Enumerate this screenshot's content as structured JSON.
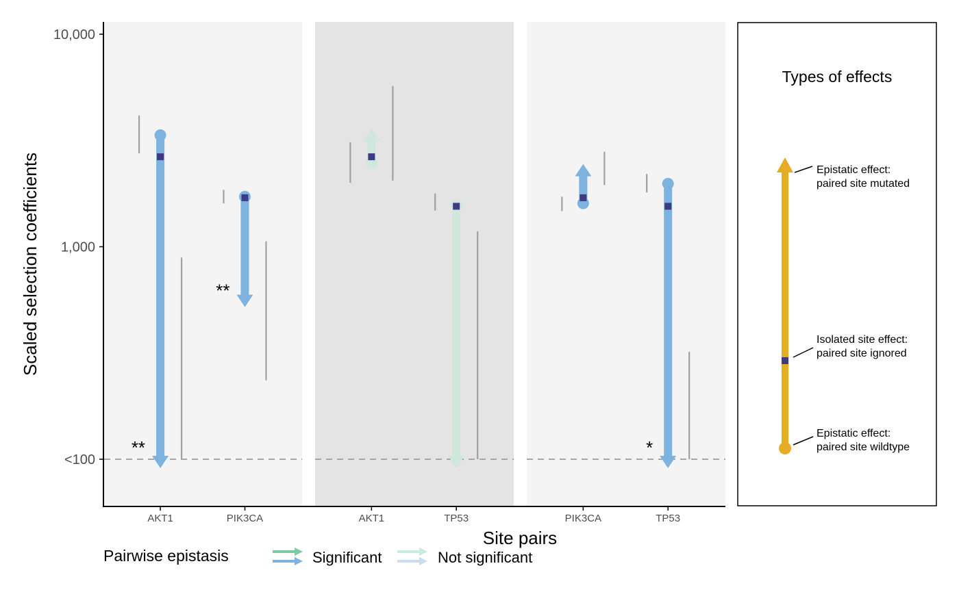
{
  "chart_data": {
    "type": "arrow-range",
    "title": "",
    "xlabel": "Site pairs",
    "ylabel": "Scaled selection coefficients",
    "y_scale": "log10",
    "ylim": [
      63,
      12000
    ],
    "y_ticks": [
      {
        "value": 100,
        "label": "<100"
      },
      {
        "value": 1000,
        "label": "1,000"
      },
      {
        "value": 10000,
        "label": "10,000"
      }
    ],
    "reference_line": {
      "value": 100,
      "style": "dashed"
    },
    "colors": {
      "significant": "#7db3de",
      "not_significant": "#cfe7dd",
      "isolated_point": "#3e3a84",
      "interval": "#a0a0a0",
      "panel_light": "#f4f4f4",
      "panel_dark": "#e4e4e4",
      "legend_green": "#7ccba5",
      "legend_blue": "#7db3de",
      "legend_green_light": "#c8ecde",
      "legend_blue_light": "#c9ddf1",
      "explainer": "#e6ac24"
    },
    "panels": [
      {
        "shade": "light",
        "sites": [
          {
            "label": "AKT1",
            "wildtype": 3350,
            "isolated": 2650,
            "mutated": 100,
            "significant": true,
            "stars": "**",
            "star_side": "left",
            "ci_left": [
              2750,
              4150
            ],
            "ci_right": [
              100,
              890
            ]
          },
          {
            "label": "PIK3CA",
            "wildtype": 1720,
            "isolated": 1700,
            "mutated": 520,
            "significant": true,
            "stars": "**",
            "star_side": "left",
            "ci_left": [
              1600,
              1850
            ],
            "ci_right": [
              235,
              1060
            ]
          }
        ]
      },
      {
        "shade": "dark",
        "sites": [
          {
            "label": "AKT1",
            "wildtype": 2480,
            "isolated": 2650,
            "mutated": 3600,
            "significant": false,
            "stars": "",
            "ci_left": [
              2000,
              3100
            ],
            "ci_right": [
              2050,
              5700
            ]
          },
          {
            "label": "TP53",
            "wildtype": 1560,
            "isolated": 1550,
            "mutated": 100,
            "significant": false,
            "stars": "",
            "ci_left": [
              1480,
              1780
            ],
            "ci_right": [
              100,
              1180
            ]
          }
        ]
      },
      {
        "shade": "light",
        "sites": [
          {
            "label": "PIK3CA",
            "wildtype": 1600,
            "isolated": 1700,
            "mutated": 2450,
            "significant": true,
            "stars": "",
            "ci_left": [
              1470,
              1720
            ],
            "ci_right": [
              1950,
              2800
            ]
          },
          {
            "label": "TP53",
            "wildtype": 1980,
            "isolated": 1550,
            "mutated": 100,
            "significant": true,
            "stars": "*",
            "star_side": "left",
            "ci_left": [
              1800,
              2200
            ],
            "ci_right": [
              100,
              320
            ]
          }
        ]
      }
    ]
  },
  "legend": {
    "title": "Pairwise epistasis",
    "significant_label": "Significant",
    "not_significant_label": "Not significant"
  },
  "explainer": {
    "title": "Types of effects",
    "mutated_line1": "Epistatic effect:",
    "mutated_line2": "paired site mutated",
    "isolated_line1": "Isolated site effect:",
    "isolated_line2": "paired site ignored",
    "wildtype_line1": "Epistatic effect:",
    "wildtype_line2": "paired site wildtype"
  }
}
